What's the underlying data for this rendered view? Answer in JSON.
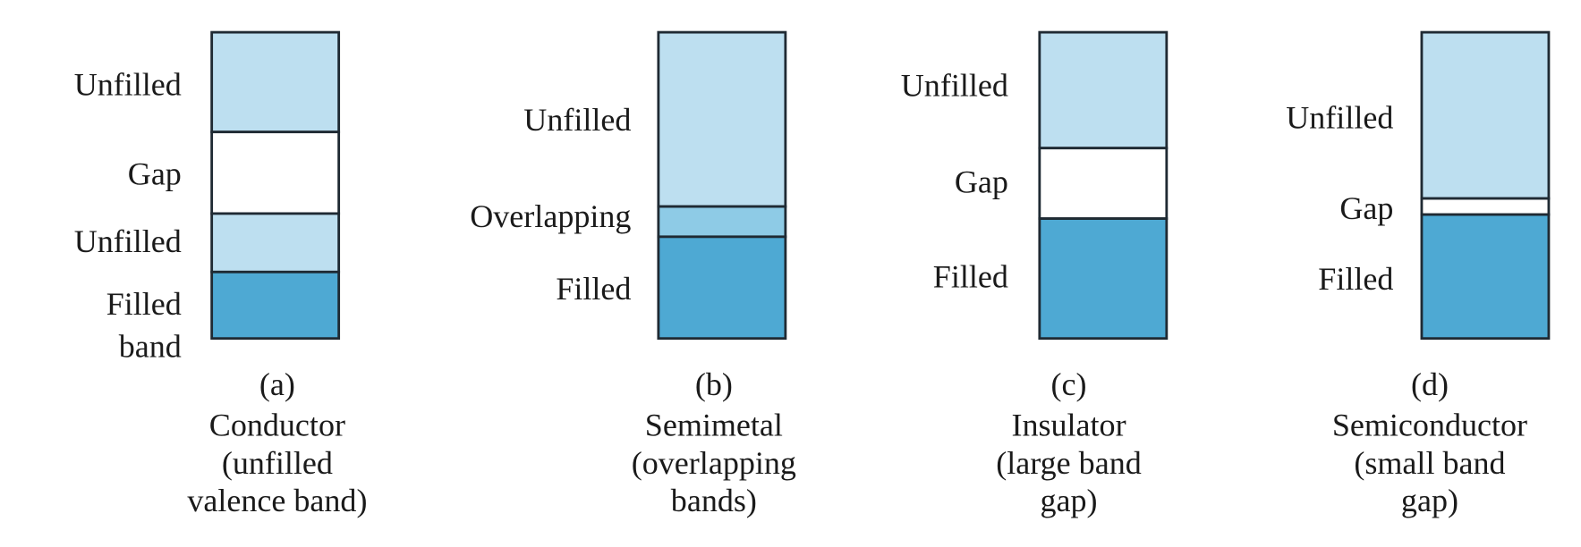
{
  "panels": [
    {
      "letter": "(a)",
      "name": "Conductor",
      "description": [
        "(unfilled",
        "valence band)"
      ],
      "bands": [
        {
          "label": [
            "Unfilled"
          ],
          "color": "#bddff0"
        },
        {
          "label": [
            "Gap"
          ],
          "color": "#ffffff"
        },
        {
          "label": [
            "Unfilled"
          ],
          "color": "#bddff0"
        },
        {
          "label": [
            "Filled",
            "band"
          ],
          "color": "#4ea9d3"
        }
      ]
    },
    {
      "letter": "(b)",
      "name": "Semimetal",
      "description": [
        "(overlapping",
        "bands)"
      ],
      "bands": [
        {
          "label": [
            "Unfilled"
          ],
          "color": "#bddff0"
        },
        {
          "label": [
            "Overlapping"
          ],
          "color": "#8ecbe6"
        },
        {
          "label": [
            "Filled"
          ],
          "color": "#4ea9d3"
        }
      ]
    },
    {
      "letter": "(c)",
      "name": "Insulator",
      "description": [
        "(large band",
        "gap)"
      ],
      "bands": [
        {
          "label": [
            "Unfilled"
          ],
          "color": "#bddff0"
        },
        {
          "label": [
            "Gap"
          ],
          "color": "#ffffff"
        },
        {
          "label": [
            "Filled"
          ],
          "color": "#4ea9d3"
        }
      ]
    },
    {
      "letter": "(d)",
      "name": "Semiconductor",
      "description": [
        "(small band",
        "gap)"
      ],
      "bands": [
        {
          "label": [
            "Unfilled"
          ],
          "color": "#bddff0"
        },
        {
          "label": [
            "Gap"
          ],
          "color": "#ffffff"
        },
        {
          "label": [
            "Filled"
          ],
          "color": "#4ea9d3"
        }
      ]
    }
  ]
}
